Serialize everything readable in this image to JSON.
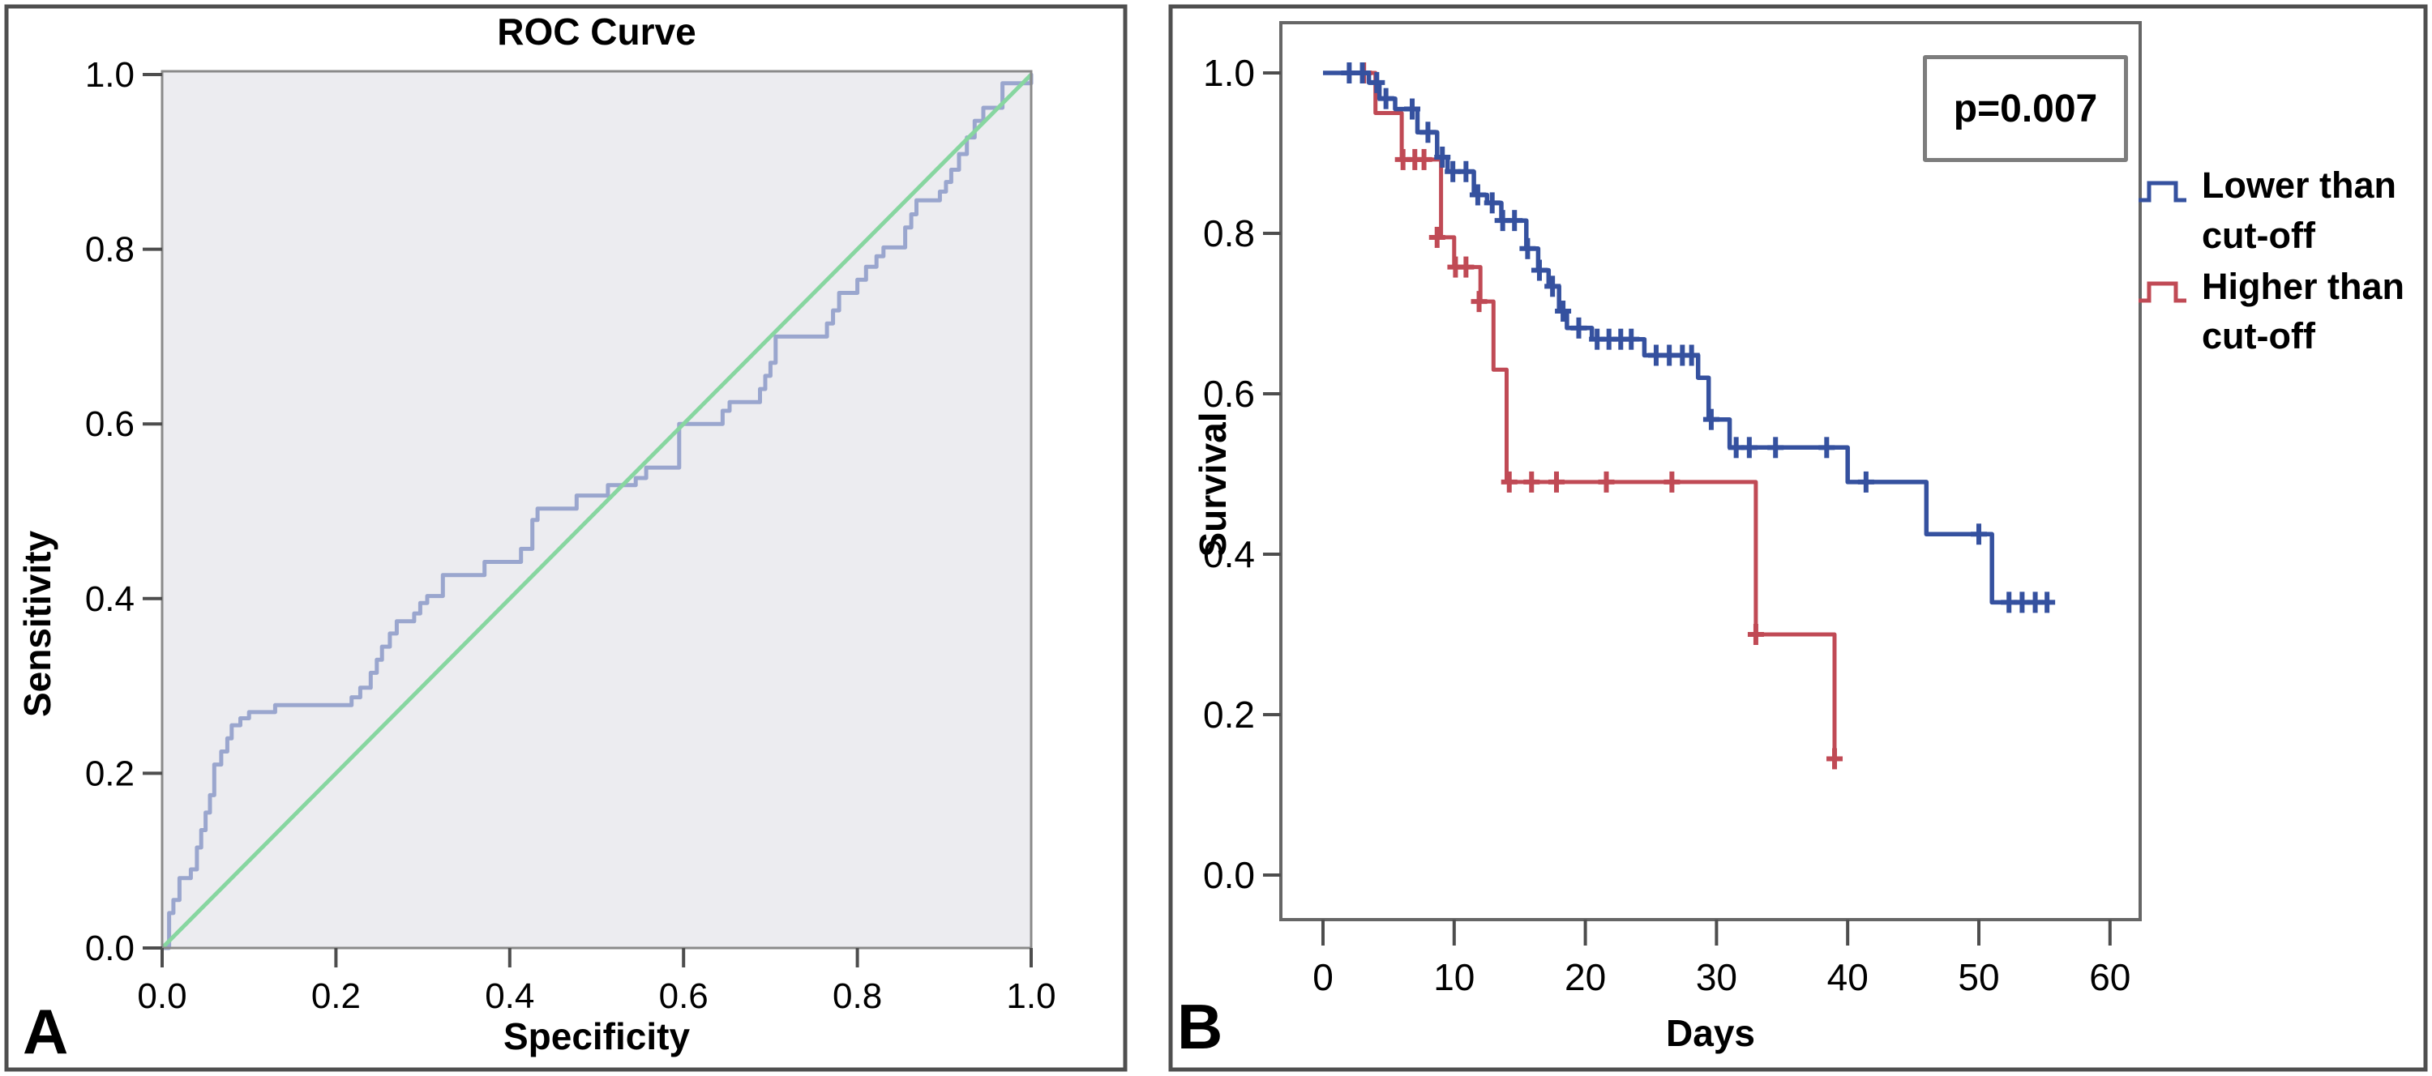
{
  "panel_a": {
    "corner_label": "A",
    "title": "ROC Curve",
    "xlabel": "Specificity",
    "ylabel": "Sensitivity",
    "x_ticks": [
      "0.0",
      "0.2",
      "0.4",
      "0.6",
      "0.8",
      "1.0"
    ],
    "y_ticks": [
      "0.0",
      "0.2",
      "0.4",
      "0.6",
      "0.8",
      "1.0"
    ],
    "colors": {
      "roc_curve": "#9aa6ce",
      "diagonal": "#87d6a0",
      "plot_bg": "#ececf0",
      "frame": "#8a8a8a"
    }
  },
  "panel_b": {
    "corner_label": "B",
    "xlabel": "Days",
    "ylabel": "Survival",
    "x_ticks": [
      "0",
      "10",
      "20",
      "30",
      "40",
      "50",
      "60"
    ],
    "y_ticks": [
      "0.0",
      "0.2",
      "0.4",
      "0.6",
      "0.8",
      "1.0"
    ],
    "p_value": "p=0.007",
    "legend": [
      {
        "label_line1": "Lower than",
        "label_line2": "cut-off",
        "color": "#35519f"
      },
      {
        "label_line1": "Higher than",
        "label_line2": "cut-off",
        "color": "#c04a55"
      }
    ]
  },
  "chart_data": [
    {
      "type": "line",
      "subtype": "roc-step-curve",
      "title": "ROC Curve",
      "xlabel": "Specificity",
      "ylabel": "Sensitivity",
      "xlim": [
        0,
        1
      ],
      "ylim": [
        0,
        1
      ],
      "grid": false,
      "legend_position": "none",
      "series": [
        {
          "name": "ROC curve",
          "color": "#9aa6ce",
          "step": true,
          "points": [
            [
              0,
              0
            ],
            [
              0.008,
              0.04
            ],
            [
              0.013,
              0.055
            ],
            [
              0.02,
              0.08
            ],
            [
              0.033,
              0.09
            ],
            [
              0.04,
              0.115
            ],
            [
              0.045,
              0.135
            ],
            [
              0.05,
              0.155
            ],
            [
              0.055,
              0.175
            ],
            [
              0.06,
              0.21
            ],
            [
              0.068,
              0.225
            ],
            [
              0.075,
              0.24
            ],
            [
              0.08,
              0.255
            ],
            [
              0.09,
              0.263
            ],
            [
              0.1,
              0.27
            ],
            [
              0.13,
              0.278
            ],
            [
              0.218,
              0.287
            ],
            [
              0.228,
              0.298
            ],
            [
              0.24,
              0.315
            ],
            [
              0.247,
              0.33
            ],
            [
              0.253,
              0.345
            ],
            [
              0.262,
              0.36
            ],
            [
              0.27,
              0.374
            ],
            [
              0.29,
              0.383
            ],
            [
              0.297,
              0.395
            ],
            [
              0.305,
              0.403
            ],
            [
              0.323,
              0.427
            ],
            [
              0.371,
              0.442
            ],
            [
              0.413,
              0.457
            ],
            [
              0.426,
              0.49
            ],
            [
              0.432,
              0.503
            ],
            [
              0.477,
              0.518
            ],
            [
              0.513,
              0.53
            ],
            [
              0.545,
              0.538
            ],
            [
              0.557,
              0.55
            ],
            [
              0.595,
              0.6
            ],
            [
              0.645,
              0.615
            ],
            [
              0.653,
              0.625
            ],
            [
              0.688,
              0.64
            ],
            [
              0.694,
              0.655
            ],
            [
              0.7,
              0.67
            ],
            [
              0.706,
              0.7
            ],
            [
              0.765,
              0.715
            ],
            [
              0.772,
              0.73
            ],
            [
              0.779,
              0.75
            ],
            [
              0.8,
              0.765
            ],
            [
              0.81,
              0.78
            ],
            [
              0.822,
              0.792
            ],
            [
              0.83,
              0.802
            ],
            [
              0.855,
              0.825
            ],
            [
              0.862,
              0.84
            ],
            [
              0.868,
              0.856
            ],
            [
              0.895,
              0.866
            ],
            [
              0.902,
              0.877
            ],
            [
              0.908,
              0.891
            ],
            [
              0.917,
              0.909
            ],
            [
              0.926,
              0.928
            ],
            [
              0.935,
              0.947
            ],
            [
              0.945,
              0.962
            ],
            [
              0.967,
              0.99
            ],
            [
              1,
              1
            ]
          ]
        },
        {
          "name": "Reference diagonal",
          "color": "#87d6a0",
          "step": false,
          "points": [
            [
              0,
              0
            ],
            [
              1,
              1
            ]
          ]
        }
      ]
    },
    {
      "type": "line",
      "subtype": "kaplan-meier",
      "title": "",
      "xlabel": "Days",
      "ylabel": "Survival",
      "xlim": [
        0,
        62
      ],
      "ylim": [
        0,
        1.05
      ],
      "annotation": "p=0.007",
      "legend_position": "right",
      "series": [
        {
          "name": "Lower than cut-off",
          "color": "#35519f",
          "step": true,
          "points": [
            [
              0,
              1.0
            ],
            [
              3.5,
              0.988
            ],
            [
              4.3,
              0.968
            ],
            [
              5.5,
              0.955
            ],
            [
              7.2,
              0.926
            ],
            [
              8.7,
              0.895
            ],
            [
              9.5,
              0.877
            ],
            [
              11.5,
              0.848
            ],
            [
              12.5,
              0.838
            ],
            [
              13.6,
              0.816
            ],
            [
              15.5,
              0.781
            ],
            [
              16.4,
              0.754
            ],
            [
              17.2,
              0.734
            ],
            [
              18,
              0.703
            ],
            [
              18.6,
              0.682
            ],
            [
              20.5,
              0.668
            ],
            [
              24.5,
              0.648
            ],
            [
              28.6,
              0.62
            ],
            [
              29.4,
              0.568
            ],
            [
              31,
              0.533
            ],
            [
              40,
              0.49
            ],
            [
              46,
              0.425
            ],
            [
              51,
              0.34
            ],
            [
              55.5,
              0.34
            ]
          ],
          "censor_marks": [
            [
              2,
              1.0
            ],
            [
              3,
              1.0
            ],
            [
              4.1,
              0.988
            ],
            [
              4.8,
              0.968
            ],
            [
              6.8,
              0.955
            ],
            [
              8,
              0.926
            ],
            [
              9.1,
              0.895
            ],
            [
              9.9,
              0.877
            ],
            [
              10.9,
              0.877
            ],
            [
              11.8,
              0.848
            ],
            [
              12.9,
              0.838
            ],
            [
              13.7,
              0.816
            ],
            [
              14.6,
              0.816
            ],
            [
              15.6,
              0.781
            ],
            [
              16.5,
              0.754
            ],
            [
              17.5,
              0.734
            ],
            [
              18.3,
              0.703
            ],
            [
              19.5,
              0.682
            ],
            [
              20.9,
              0.668
            ],
            [
              21.8,
              0.668
            ],
            [
              22.7,
              0.668
            ],
            [
              23.5,
              0.668
            ],
            [
              25.4,
              0.648
            ],
            [
              26.4,
              0.648
            ],
            [
              27.4,
              0.648
            ],
            [
              28.1,
              0.648
            ],
            [
              29.6,
              0.568
            ],
            [
              31.5,
              0.533
            ],
            [
              32.5,
              0.533
            ],
            [
              34.5,
              0.533
            ],
            [
              38.4,
              0.533
            ],
            [
              41.4,
              0.49
            ],
            [
              50,
              0.425
            ],
            [
              52.3,
              0.34
            ],
            [
              53.3,
              0.34
            ],
            [
              54.3,
              0.34
            ],
            [
              55.2,
              0.34
            ]
          ]
        },
        {
          "name": "Higher than cut-off",
          "color": "#c04a55",
          "step": true,
          "points": [
            [
              0,
              1.0
            ],
            [
              4,
              0.95
            ],
            [
              6,
              0.892
            ],
            [
              9,
              0.795
            ],
            [
              10,
              0.758
            ],
            [
              12,
              0.715
            ],
            [
              13,
              0.63
            ],
            [
              14,
              0.49
            ],
            [
              33,
              0.3
            ],
            [
              39,
              0.145
            ],
            [
              39.5,
              0.145
            ]
          ],
          "censor_marks": [
            [
              3.1,
              1.0
            ],
            [
              6.1,
              0.892
            ],
            [
              7,
              0.892
            ],
            [
              7.7,
              0.892
            ],
            [
              8.7,
              0.795
            ],
            [
              10.1,
              0.758
            ],
            [
              10.9,
              0.758
            ],
            [
              11.9,
              0.715
            ],
            [
              14.2,
              0.49
            ],
            [
              15.9,
              0.49
            ],
            [
              17.8,
              0.49
            ],
            [
              21.6,
              0.49
            ],
            [
              26.6,
              0.49
            ],
            [
              33,
              0.3
            ],
            [
              39,
              0.145
            ]
          ]
        }
      ]
    }
  ]
}
